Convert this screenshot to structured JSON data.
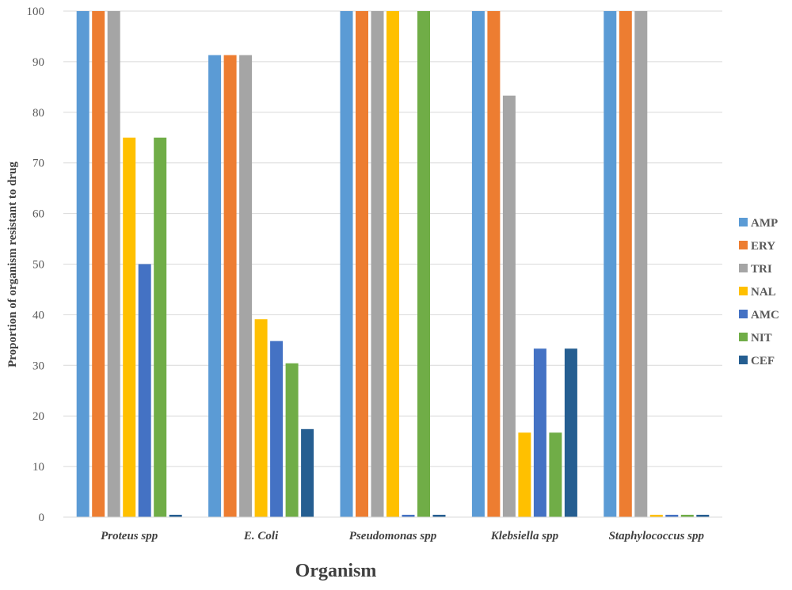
{
  "chart_data": {
    "type": "bar",
    "title": "",
    "xlabel": "Organism",
    "ylabel": "Proportion of organism resistant to drug",
    "ylim": [
      0,
      100
    ],
    "yticks": [
      0,
      10,
      20,
      30,
      40,
      50,
      60,
      70,
      80,
      90,
      100
    ],
    "grid": "horizontal",
    "legend_position": "right",
    "categories": [
      "Proteus spp",
      "E. Coli",
      "Pseudomonas spp",
      "Klebsiella spp",
      "Staphylococcus spp"
    ],
    "series": [
      {
        "name": "AMP",
        "color": "#5B9BD5",
        "values": [
          100,
          91.3,
          100,
          100,
          100
        ]
      },
      {
        "name": "ERY",
        "color": "#ED7D31",
        "values": [
          100,
          91.3,
          100,
          100,
          100
        ]
      },
      {
        "name": "TRI",
        "color": "#A5A5A5",
        "values": [
          100,
          91.3,
          100,
          83.3,
          100
        ]
      },
      {
        "name": "NAL",
        "color": "#FFC000",
        "values": [
          75,
          39.1,
          100,
          16.7,
          0
        ]
      },
      {
        "name": "AMC",
        "color": "#4472C4",
        "values": [
          50,
          34.8,
          0,
          33.3,
          0
        ]
      },
      {
        "name": "NIT",
        "color": "#70AD47",
        "values": [
          75,
          30.4,
          100,
          16.7,
          0
        ]
      },
      {
        "name": "CEF",
        "color": "#255E91",
        "values": [
          0,
          17.4,
          0,
          33.3,
          0
        ]
      }
    ]
  }
}
